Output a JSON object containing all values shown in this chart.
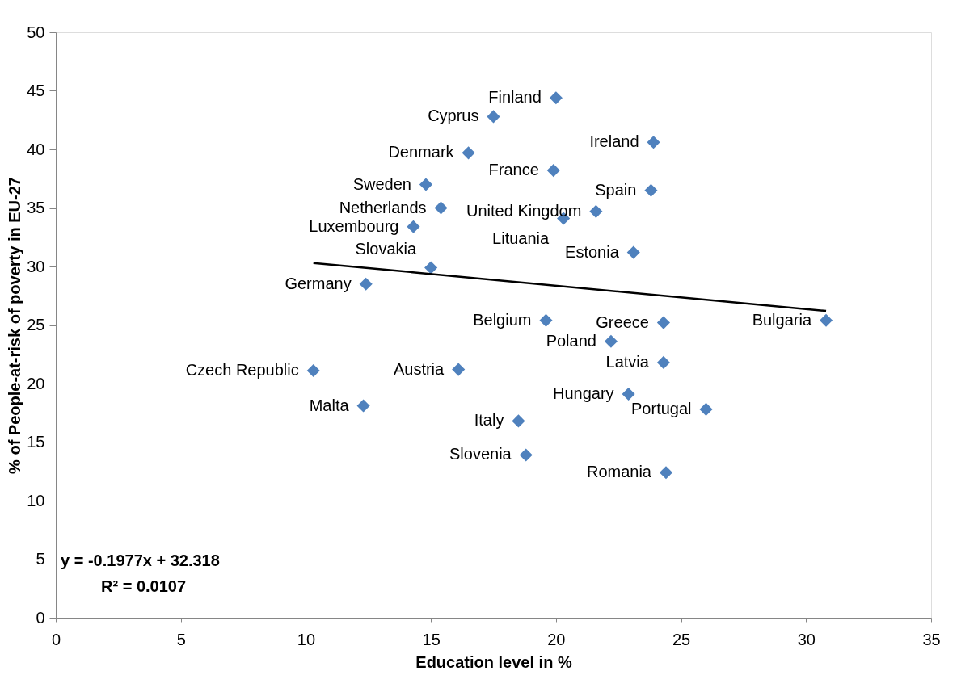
{
  "chart_data": {
    "type": "scatter",
    "xlabel": "Education level in %",
    "ylabel": "% of People-at-risk of poverty in EU-27",
    "x": [
      20.0,
      17.5,
      23.9,
      16.5,
      19.9,
      14.8,
      23.8,
      15.4,
      21.6,
      20.3,
      14.3,
      23.1,
      15.0,
      12.4,
      19.6,
      24.3,
      30.8,
      22.2,
      24.3,
      10.3,
      16.1,
      22.9,
      12.3,
      26.0,
      18.5,
      18.8,
      24.4
    ],
    "series": [
      {
        "color": "#4f81bd",
        "marker": "diamond",
        "values": [
          44.4,
          42.8,
          40.6,
          39.7,
          38.2,
          37.0,
          36.5,
          35.0,
          34.7,
          34.1,
          33.4,
          31.2,
          29.9,
          28.5,
          25.4,
          25.2,
          25.4,
          23.6,
          21.8,
          21.1,
          21.2,
          19.1,
          18.1,
          17.8,
          16.8,
          13.9,
          12.4
        ],
        "value_labels": [
          "Finland",
          "Cyprus",
          "Ireland",
          "Denmark",
          "France",
          "Sweden",
          "Spain",
          "Netherlands",
          "United Kingdom",
          "Lituania",
          "Luxembourg",
          "Estonia",
          "Slovakia",
          "Germany",
          "Belgium",
          "Greece",
          "Bulgaria",
          "Poland",
          "Latvia",
          "Czech Republic",
          "Austria",
          "Hungary",
          "Malta",
          "Portugal",
          "Italy",
          "Slovenia",
          "Romania"
        ]
      },
      {
        "type": "line",
        "color": "#000000",
        "marker": "none",
        "x": [
          10.3,
          30.8
        ],
        "values": [
          30.3,
          26.2
        ]
      }
    ],
    "annotations": [
      "y = -0.1977x + 32.318",
      "R² = 0.0107"
    ],
    "xlim": [
      0,
      35
    ],
    "ylim": [
      0,
      50
    ],
    "xticks": [
      0,
      5,
      10,
      15,
      20,
      25,
      30,
      35
    ],
    "yticks": [
      0,
      5,
      10,
      15,
      20,
      25,
      30,
      35,
      40,
      45,
      50
    ],
    "grid": false
  }
}
